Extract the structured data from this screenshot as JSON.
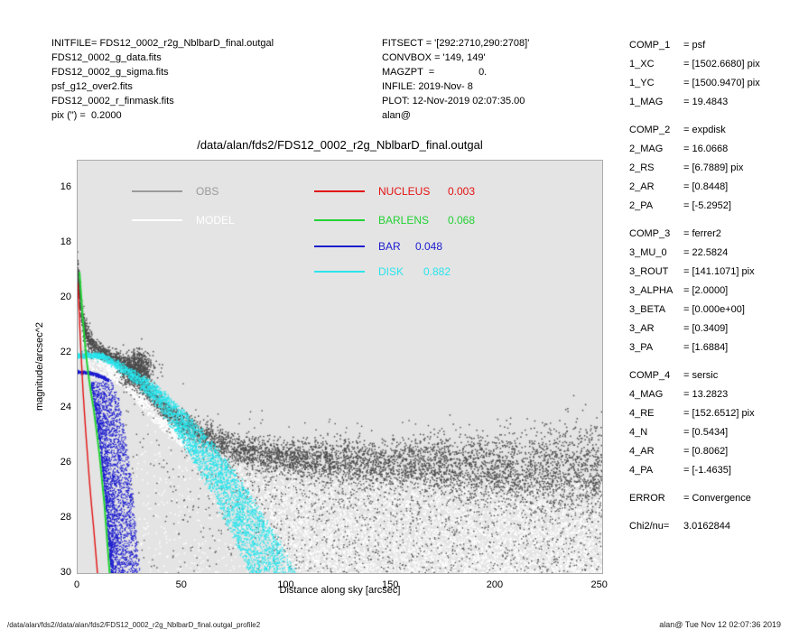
{
  "header_left": {
    "lines": [
      "INITFILE= FDS12_0002_r2g_NblbarD_final.outgal",
      "FDS12_0002_g_data.fits",
      "FDS12_0002_g_sigma.fits",
      "psf_g12_over2.fits",
      "FDS12_0002_r_finmask.fits",
      "pix (\") =  0.2000"
    ]
  },
  "header_mid": {
    "lines": [
      "FITSECT = '[292:2710,290:2708]'",
      "CONVBOX = '149, 149'",
      "MAGZPT  =                0.",
      "INFILE: 2019-Nov- 8",
      "PLOT: 12-Nov-2019 02:07:35.00",
      "alan@"
    ]
  },
  "right_panel": {
    "lines": [
      {
        "k": "COMP_1",
        "v": "= psf"
      },
      {
        "k": "1_XC",
        "v": "= [1502.6680] pix"
      },
      {
        "k": "1_YC",
        "v": "= [1500.9470] pix"
      },
      {
        "k": "1_MAG",
        "v": "= 19.4843"
      },
      {
        "k": "",
        "v": ""
      },
      {
        "k": "COMP_2",
        "v": "= expdisk"
      },
      {
        "k": "2_MAG",
        "v": "= 16.0668"
      },
      {
        "k": "2_RS",
        "v": "= [6.7889] pix"
      },
      {
        "k": "2_AR",
        "v": "= [0.8448]"
      },
      {
        "k": "2_PA",
        "v": "= [-5.2952]"
      },
      {
        "k": "",
        "v": ""
      },
      {
        "k": "COMP_3",
        "v": "= ferrer2"
      },
      {
        "k": "3_MU_0",
        "v": "= 22.5824"
      },
      {
        "k": "3_ROUT",
        "v": "= [141.1071] pix"
      },
      {
        "k": "3_ALPHA",
        "v": "= [2.0000]"
      },
      {
        "k": "3_BETA",
        "v": "= [0.000e+00]"
      },
      {
        "k": "3_AR",
        "v": "= [0.3409]"
      },
      {
        "k": "3_PA",
        "v": "= [1.6884]"
      },
      {
        "k": "",
        "v": ""
      },
      {
        "k": "COMP_4",
        "v": "= sersic"
      },
      {
        "k": "4_MAG",
        "v": "= 13.2823"
      },
      {
        "k": "4_RE",
        "v": "= [152.6512] pix"
      },
      {
        "k": "4_N",
        "v": "= [0.5434]"
      },
      {
        "k": "4_AR",
        "v": "= [0.8062]"
      },
      {
        "k": "4_PA",
        "v": "= [-1.4635]"
      },
      {
        "k": "",
        "v": ""
      },
      {
        "k": "ERROR",
        "v": "= Convergence"
      },
      {
        "k": "",
        "v": ""
      },
      {
        "k": "Chi2/nu=",
        "v": "3.0162844"
      }
    ]
  },
  "footer": {
    "path": "/data/alan/fds2//data/alan/fds2/FDS12_0002_r2g_NblbarD_final.outgal_profile2",
    "stamp": "alan@  Tue Nov 12 02:07:36 2019"
  },
  "chart_data": {
    "type": "scatter",
    "title": "/data/alan/fds2/FDS12_0002_r2g_NblbarD_final.outgal",
    "xlabel": "Distance along sky [arcsec]",
    "ylabel": "magnitude/arcsec^2",
    "xlim": [
      0,
      251
    ],
    "ylim": [
      30,
      15
    ],
    "xticks": [
      0,
      50,
      100,
      150,
      200,
      250
    ],
    "yticks": [
      16,
      18,
      20,
      22,
      24,
      26,
      28,
      30
    ],
    "plot_bg": "#e4e4e4",
    "legend_left": [
      {
        "label": "OBS",
        "color": "#9a9a9a"
      },
      {
        "label": "MODEL",
        "color": "#ffffff"
      }
    ],
    "legend_right": [
      {
        "label": "NUCLEUS",
        "fraction": "0.003",
        "color": "#e31212"
      },
      {
        "label": "BARLENS",
        "fraction": "0.068",
        "color": "#22d234"
      },
      {
        "label": "BAR",
        "fraction": "0.048",
        "color": "#1d1dcf"
      },
      {
        "label": "DISK",
        "fraction": "0.882",
        "color": "#2ae4ec"
      }
    ],
    "series": [
      {
        "name": "OBS",
        "style": "scatter-band",
        "color": "#4d4d4d",
        "profile": [
          [
            0,
            19.0
          ],
          [
            1,
            19.9
          ],
          [
            2,
            20.6
          ],
          [
            3,
            21.0
          ],
          [
            5,
            21.45
          ],
          [
            8,
            21.75
          ],
          [
            12,
            21.95
          ],
          [
            16,
            22.1
          ],
          [
            20,
            22.25
          ],
          [
            25,
            22.6
          ],
          [
            30,
            23.05
          ],
          [
            35,
            23.5
          ],
          [
            40,
            23.9
          ],
          [
            46,
            24.3
          ],
          [
            52,
            24.62
          ],
          [
            58,
            24.9
          ],
          [
            65,
            25.15
          ],
          [
            72,
            25.35
          ],
          [
            80,
            25.52
          ],
          [
            90,
            25.68
          ],
          [
            100,
            25.78
          ],
          [
            120,
            25.9
          ],
          [
            140,
            25.97
          ],
          [
            170,
            26.05
          ],
          [
            200,
            26.12
          ],
          [
            230,
            26.18
          ],
          [
            251,
            26.22
          ]
        ]
      },
      {
        "name": "MODEL",
        "style": "scatter-speckle",
        "color": "#ffffff"
      },
      {
        "name": "NUCLEUS",
        "style": "line",
        "color": "#e31212",
        "points": [
          [
            0,
            19.45
          ],
          [
            0.5,
            20.2
          ],
          [
            1,
            21.0
          ],
          [
            1.5,
            21.8
          ],
          [
            2,
            22.55
          ],
          [
            2.6,
            23.4
          ],
          [
            3.2,
            24.1
          ],
          [
            4,
            25.0
          ],
          [
            4.8,
            25.8
          ],
          [
            5.6,
            26.6
          ],
          [
            6.6,
            27.5
          ],
          [
            7.6,
            28.3
          ],
          [
            8.6,
            29.2
          ],
          [
            9.6,
            30.1
          ]
        ]
      },
      {
        "name": "BARLENS",
        "style": "line",
        "color": "#22d234",
        "points": [
          [
            0.9,
            19.05
          ],
          [
            1.6,
            19.8
          ],
          [
            2.4,
            20.7
          ],
          [
            3.2,
            21.4
          ],
          [
            3.9,
            22.0
          ],
          [
            5,
            22.7
          ],
          [
            6.3,
            23.4
          ],
          [
            7.6,
            24.0
          ],
          [
            9,
            24.8
          ],
          [
            10.3,
            25.6
          ],
          [
            11.7,
            26.65
          ],
          [
            12.8,
            27.5
          ],
          [
            13.7,
            28.4
          ],
          [
            14.6,
            29.3
          ],
          [
            15.4,
            30.1
          ]
        ]
      },
      {
        "name": "BAR",
        "style": "cloud",
        "color": "#1d1dcf"
      },
      {
        "name": "DISK",
        "style": "band",
        "color": "#2ae4ec"
      }
    ],
    "render": {
      "seed": 20191112,
      "obs": {
        "band_count": 5200,
        "outlier_count": 2200,
        "above_count": 80,
        "inner_count": 300,
        "blob": {
          "cx": 28,
          "cy": 22.6,
          "sx": 3.8,
          "sy": 0.32,
          "count": 850
        }
      },
      "model": {
        "speckle_count": 9200,
        "strip_count": 650,
        "inner_count": 300
      },
      "bar": {
        "m_top": 22.7,
        "m_knee": 23.0,
        "r_knee": 15,
        "r_max": 30,
        "count": 2700,
        "edge_count": 300,
        "left_offset": 0.8
      },
      "disk": {
        "mu0": 22.0,
        "dm": 8.0,
        "r0": 88,
        "exp": 1.85,
        "spread_min": 0.93,
        "spread_rng": 0.26,
        "count": 3300,
        "head_count": 320
      }
    }
  }
}
